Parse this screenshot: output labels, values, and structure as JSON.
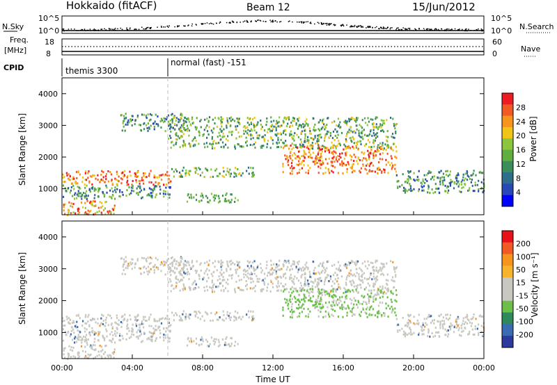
{
  "header": {
    "station": "Hokkaido (fitACF)",
    "beam": "Beam 12",
    "date": "15/Jun/2012"
  },
  "strip_labels": {
    "nsky": "N.Sky",
    "nsearch": "N.Search",
    "freq_top": "Freq.",
    "freq_unit": "[MHz]",
    "nave": "Nave",
    "cpid": "CPID",
    "nsky_ticks": [
      "10^5",
      "10^0"
    ],
    "nsearch_ticks": [
      "10^5",
      "10^0"
    ],
    "freq_ticks": [
      "18",
      "8"
    ],
    "nave_ticks": [
      "60",
      "0"
    ]
  },
  "cpid_modes": [
    {
      "label": "themis 3300",
      "start_hour": 0
    },
    {
      "label": "normal (fast) -151",
      "start_hour": 6
    }
  ],
  "chart_data": [
    {
      "type": "heatmap",
      "name": "power",
      "ylabel": "Slant Range [km]",
      "xlabel": "",
      "ylim": [
        180,
        4500
      ],
      "y_ticks": [
        "1000",
        "2000",
        "3000",
        "4000"
      ],
      "colorbar": {
        "label": "Power [dB]",
        "ticks": [
          "28",
          "24",
          "20",
          "16",
          "12",
          "8",
          "4"
        ],
        "colors": [
          "#0000ff",
          "#2a47b8",
          "#2e6e8a",
          "#3a8e5a",
          "#5fae3f",
          "#8cc63f",
          "#f0c419",
          "#f7941d",
          "#f15a24",
          "#ed1c24"
        ]
      },
      "echo_bands": [
        {
          "km": 1400,
          "from_h": 0,
          "to_h": 7,
          "level": "high"
        },
        {
          "km": 3200,
          "from_h": 4,
          "to_h": 7,
          "level": "mid"
        },
        {
          "km": 2200,
          "from_h": 13,
          "to_h": 19,
          "level": "high"
        },
        {
          "km": 1500,
          "from_h": 12,
          "to_h": 24,
          "level": "mid"
        }
      ]
    },
    {
      "type": "heatmap",
      "name": "velocity",
      "ylabel": "Slant Range [km]",
      "xlabel": "Time UT",
      "ylim": [
        180,
        4500
      ],
      "y_ticks": [
        "1000",
        "2000",
        "3000",
        "4000"
      ],
      "x_ticks": [
        "00:00",
        "04:00",
        "08:00",
        "12:00",
        "16:00",
        "20:00",
        "00:00"
      ],
      "colorbar": {
        "label": "Velocity [m s⁻¹]",
        "ticks": [
          "200",
          "100",
          "50",
          "15",
          "-15",
          "-50",
          "-100",
          "-200"
        ],
        "colors": [
          "#2b3a9c",
          "#3b6bb0",
          "#2e8a5a",
          "#6cc04a",
          "#c8c8c0",
          "#c8c8c0",
          "#f7b32b",
          "#f7941d",
          "#f15a24",
          "#e8101a"
        ]
      }
    }
  ]
}
